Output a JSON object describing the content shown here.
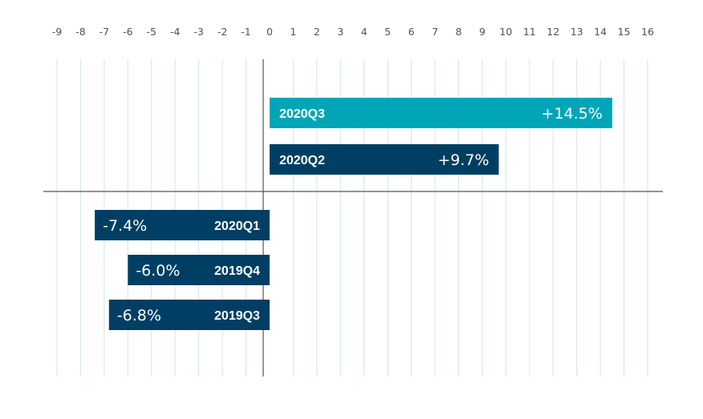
{
  "chart_data": {
    "type": "bar",
    "orientation": "horizontal",
    "categories": [
      "2020Q3",
      "2020Q2",
      "2020Q1",
      "2019Q4",
      "2019Q3"
    ],
    "values": [
      14.5,
      9.7,
      -7.4,
      -6.0,
      -6.8
    ],
    "value_labels": [
      "+14.5%",
      "+9.7%",
      "-7.4%",
      "-6.0%",
      "-6.8%"
    ],
    "xlim": [
      -9,
      16
    ],
    "x_ticks": [
      "-9",
      "-8",
      "-7",
      "-6",
      "-5",
      "-4",
      "-3",
      "-2",
      "-1",
      "0",
      "1",
      "2",
      "3",
      "4",
      "5",
      "6",
      "7",
      "8",
      "9",
      "10",
      "11",
      "12",
      "13",
      "14",
      "15",
      "16"
    ],
    "axis_position": "top",
    "grid": true,
    "colors": {
      "highlight": "#00a6b8",
      "default": "#003f63",
      "grid": "#cfe6ea",
      "tick_text": "#4a5560"
    }
  }
}
